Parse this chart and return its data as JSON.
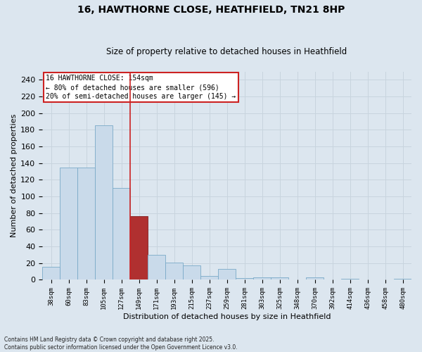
{
  "title_line1": "16, HAWTHORNE CLOSE, HEATHFIELD, TN21 8HP",
  "title_line2": "Size of property relative to detached houses in Heathfield",
  "xlabel": "Distribution of detached houses by size in Heathfield",
  "ylabel": "Number of detached properties",
  "categories": [
    "38sqm",
    "60sqm",
    "83sqm",
    "105sqm",
    "127sqm",
    "149sqm",
    "171sqm",
    "193sqm",
    "215sqm",
    "237sqm",
    "259sqm",
    "281sqm",
    "303sqm",
    "325sqm",
    "348sqm",
    "370sqm",
    "392sqm",
    "414sqm",
    "436sqm",
    "458sqm",
    "480sqm"
  ],
  "values": [
    16,
    135,
    135,
    185,
    110,
    76,
    30,
    21,
    17,
    5,
    13,
    2,
    3,
    3,
    0,
    3,
    0,
    1,
    0,
    0,
    1
  ],
  "bar_color": "#c9daea",
  "bar_edge_color": "#7aaac8",
  "highlight_bar_index": 5,
  "highlight_bar_color": "#b03030",
  "highlight_bar_edge_color": "#802020",
  "vline_x": 4.5,
  "vline_color": "#cc2222",
  "ylim": [
    0,
    250
  ],
  "yticks": [
    0,
    20,
    40,
    60,
    80,
    100,
    120,
    140,
    160,
    180,
    200,
    220,
    240
  ],
  "annotation_title": "16 HAWTHORNE CLOSE: 154sqm",
  "annotation_line1": "← 80% of detached houses are smaller (596)",
  "annotation_line2": "20% of semi-detached houses are larger (145) →",
  "annotation_box_facecolor": "#ffffff",
  "annotation_box_edgecolor": "#cc2222",
  "grid_color": "#c8d4de",
  "bg_color": "#dce6ef",
  "footnote_line1": "Contains HM Land Registry data © Crown copyright and database right 2025.",
  "footnote_line2": "Contains public sector information licensed under the Open Government Licence v3.0."
}
